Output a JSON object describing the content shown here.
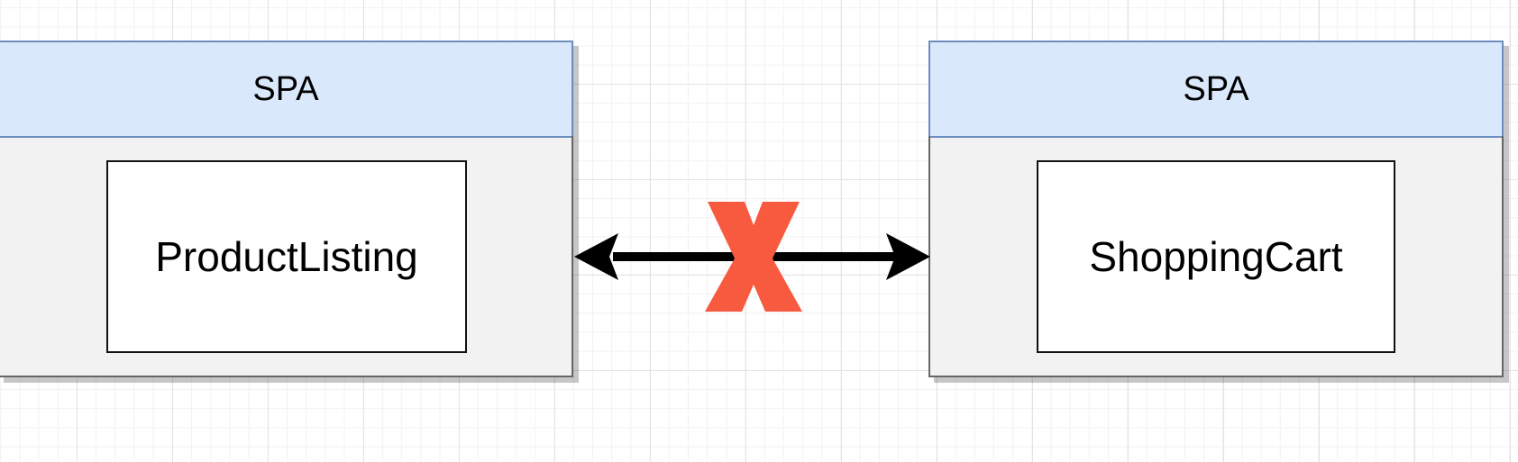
{
  "diagram": {
    "left": {
      "container_label": "SPA",
      "component_label": "ProductListing"
    },
    "right": {
      "container_label": "SPA",
      "component_label": "ShoppingCart"
    },
    "connector": {
      "type": "bidirectional-arrow",
      "blocked": true,
      "mark": "X",
      "mark_color": "#f85a40"
    },
    "colors": {
      "header_fill": "#dae8fc",
      "header_stroke": "#6c8ebf",
      "container_fill": "#f2f2f2",
      "component_fill": "#ffffff"
    }
  }
}
